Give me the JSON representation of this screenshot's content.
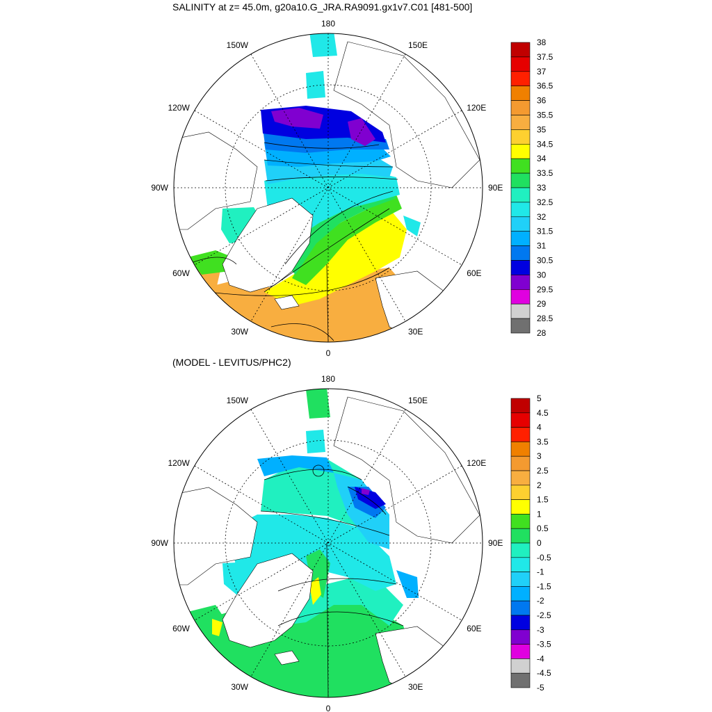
{
  "top_panel": {
    "title": "SALINITY at z=  45.0m, g20a10.G_JRA.RA9091.gx1v7.C01 [481-500]",
    "lon_labels": [
      {
        "text": "180",
        "angle": 180
      },
      {
        "text": "150E",
        "angle": 150
      },
      {
        "text": "120E",
        "angle": 120
      },
      {
        "text": "90E",
        "angle": 90
      },
      {
        "text": "60E",
        "angle": 60
      },
      {
        "text": "30E",
        "angle": 30
      },
      {
        "text": "0",
        "angle": 0
      },
      {
        "text": "30W",
        "angle": -30
      },
      {
        "text": "60W",
        "angle": -60
      },
      {
        "text": "90W",
        "angle": -90
      },
      {
        "text": "120W",
        "angle": -120
      },
      {
        "text": "150W",
        "angle": -150
      }
    ],
    "colorbar": {
      "labels": [
        "38",
        "37.5",
        "37",
        "36.5",
        "36",
        "35.5",
        "35",
        "34.5",
        "34",
        "33.5",
        "33",
        "32.5",
        "32",
        "31.5",
        "31",
        "30.5",
        "30",
        "29.5",
        "29",
        "28.5",
        "28"
      ],
      "colors": [
        "#c00000",
        "#e60000",
        "#ff2000",
        "#f08000",
        "#f49a30",
        "#f8ae40",
        "#fdd030",
        "#ffff00",
        "#40e020",
        "#20e060",
        "#20f0c0",
        "#20e8e8",
        "#20d0f8",
        "#00b0ff",
        "#0078f0",
        "#0000e0",
        "#8000d0",
        "#e000e0",
        "#d0d0d0",
        "#707070"
      ]
    },
    "contour_fills": [
      {
        "name": "purple-29.5",
        "color": "#8000d0"
      },
      {
        "name": "blue-30",
        "color": "#0000e0"
      },
      {
        "name": "blue-30.5",
        "color": "#0078f0"
      },
      {
        "name": "blue-31",
        "color": "#00b0ff"
      },
      {
        "name": "cyan-31.5",
        "color": "#20d0f8"
      },
      {
        "name": "cyan-32",
        "color": "#20e8e8"
      },
      {
        "name": "green-33",
        "color": "#20e060"
      },
      {
        "name": "green-33.5",
        "color": "#40e020"
      },
      {
        "name": "yellow-34",
        "color": "#ffff00"
      },
      {
        "name": "orange-34.5",
        "color": "#f8ae40"
      }
    ]
  },
  "bottom_panel": {
    "title": "(MODEL - LEVITUS/PHC2)",
    "colorbar": {
      "labels": [
        "5",
        "4.5",
        "4",
        "3.5",
        "3",
        "2.5",
        "2",
        "1.5",
        "1",
        "0.5",
        "0",
        "-0.5",
        "-1",
        "-1.5",
        "-2",
        "-2.5",
        "-3",
        "-3.5",
        "-4",
        "-4.5",
        "-5"
      ],
      "colors": [
        "#c00000",
        "#e60000",
        "#ff2000",
        "#f08000",
        "#f49a30",
        "#f8ae40",
        "#fdd030",
        "#ffff00",
        "#40e020",
        "#20e060",
        "#20f0c0",
        "#20e8e8",
        "#20d0f8",
        "#00b0ff",
        "#0078f0",
        "#0000e0",
        "#8000d0",
        "#e000e0",
        "#d0d0d0",
        "#707070"
      ]
    },
    "contour_fills": [
      {
        "name": "cyan-0",
        "color": "#20f0c0"
      },
      {
        "name": "cyan-0.5",
        "color": "#20e8e8"
      },
      {
        "name": "blue-1",
        "color": "#20d0f8"
      },
      {
        "name": "blue-1.5",
        "color": "#00b0ff"
      },
      {
        "name": "blue-2.5",
        "color": "#0000e0"
      },
      {
        "name": "green-0.5",
        "color": "#20e060"
      },
      {
        "name": "yellow-1.5",
        "color": "#ffff00"
      }
    ]
  }
}
